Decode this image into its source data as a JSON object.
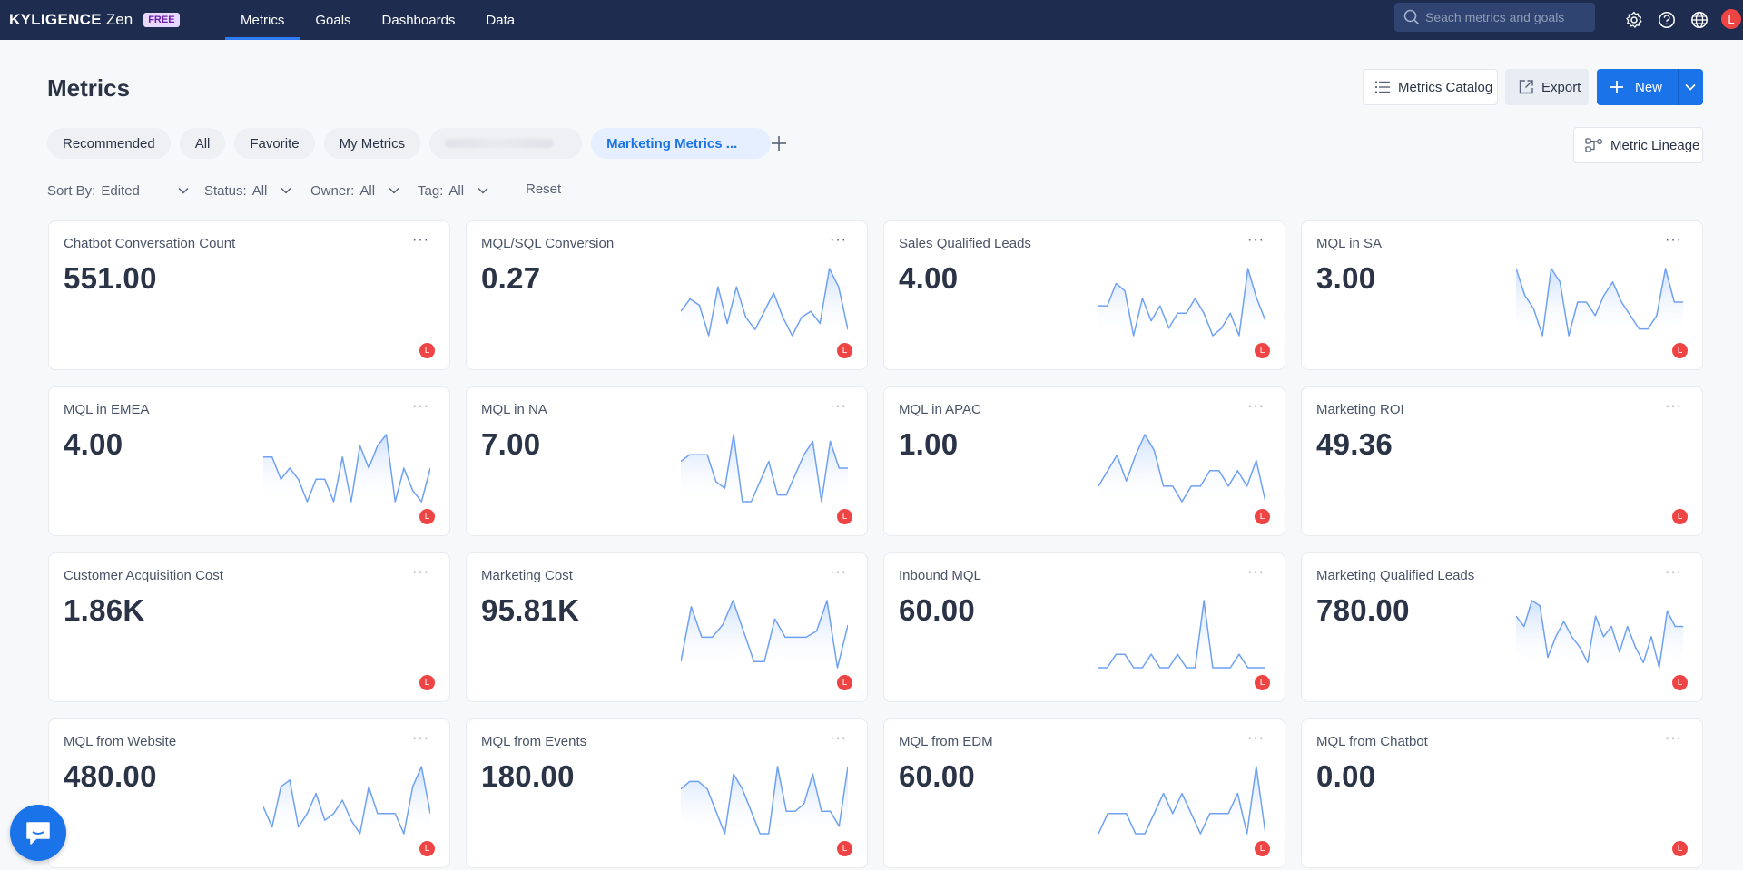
{
  "brand": {
    "name": "KYLIGENCE",
    "product": "Zen",
    "badge": "FREE"
  },
  "nav": [
    {
      "label": "Metrics",
      "active": true
    },
    {
      "label": "Goals",
      "active": false
    },
    {
      "label": "Dashboards",
      "active": false
    },
    {
      "label": "Data",
      "active": false
    }
  ],
  "search": {
    "placeholder": "Seach metrics and goals",
    "value": ""
  },
  "top_icons": [
    "settings-icon",
    "help-icon",
    "globe-icon"
  ],
  "user": {
    "initial": "L"
  },
  "page": {
    "title": "Metrics"
  },
  "actions": {
    "catalog": "Metrics Catalog",
    "export": "Export",
    "new": "New",
    "lineage": "Metric Lineage"
  },
  "tabs": [
    {
      "label": "Recommended"
    },
    {
      "label": "All"
    },
    {
      "label": "Favorite"
    },
    {
      "label": "My Metrics"
    },
    {
      "label": ""
    },
    {
      "label": "Marketing Metrics ...",
      "active": true
    }
  ],
  "filters": {
    "sort": {
      "key": "Sort By:",
      "value": "Edited"
    },
    "status": {
      "key": "Status:",
      "value": "All"
    },
    "owner": {
      "key": "Owner:",
      "value": "All"
    },
    "tag": {
      "key": "Tag:",
      "value": "All"
    },
    "reset": "Reset"
  },
  "accent": "#1a73e8",
  "cards": [
    {
      "title": "Chatbot Conversation Count",
      "value": "551.00",
      "owner": "L",
      "trend": []
    },
    {
      "title": "MQL/SQL Conversion",
      "value": "0.27",
      "owner": "L",
      "trend": [
        5,
        7,
        6,
        1,
        9,
        3,
        9,
        4,
        2,
        5,
        8,
        4,
        1,
        4,
        5,
        3,
        12,
        9,
        2
      ]
    },
    {
      "title": "Sales Qualified Leads",
      "value": "4.00",
      "owner": "L",
      "trend": [
        5,
        5,
        8,
        7,
        1,
        6,
        3,
        5,
        2,
        4,
        4,
        6,
        4,
        1,
        2,
        4,
        1,
        10,
        6,
        3
      ]
    },
    {
      "title": "MQL in SA",
      "value": "3.00",
      "owner": "L",
      "trend": [
        10,
        6,
        4,
        0,
        10,
        8,
        0,
        5,
        5,
        3,
        6,
        8,
        5,
        3,
        1,
        1,
        3,
        10,
        5,
        5
      ]
    },
    {
      "title": "MQL in EMEA",
      "value": "4.00",
      "owner": "L",
      "trend": [
        8,
        8,
        4,
        6,
        4,
        0,
        4,
        4,
        0,
        8,
        0,
        10,
        6,
        10,
        12,
        0,
        6,
        2,
        0,
        6
      ]
    },
    {
      "title": "MQL in NA",
      "value": "7.00",
      "owner": "L",
      "trend": [
        6,
        7,
        7,
        7,
        3,
        2,
        10,
        0,
        0,
        3,
        6,
        1,
        1,
        4,
        7,
        9,
        0,
        9,
        5,
        5
      ]
    },
    {
      "title": "MQL in APAC",
      "value": "1.00",
      "owner": "L",
      "trend": [
        3,
        6,
        9,
        4,
        9,
        13,
        10,
        3,
        3,
        0,
        3,
        3,
        6,
        6,
        3,
        6,
        3,
        8,
        0
      ]
    },
    {
      "title": "Marketing ROI",
      "value": "49.36",
      "owner": "L",
      "trend": []
    },
    {
      "title": "Customer Acquisition Cost",
      "value": "1.86K",
      "owner": "L",
      "trend": []
    },
    {
      "title": "Marketing Cost",
      "value": "95.81K",
      "owner": "L",
      "trend": [
        1,
        10,
        5,
        5,
        7,
        11,
        6,
        1,
        1,
        8,
        5,
        5,
        5,
        6,
        11,
        0,
        7
      ]
    },
    {
      "title": "Inbound MQL",
      "value": "60.00",
      "owner": "L",
      "trend": [
        0,
        0,
        1,
        1,
        0,
        0,
        1,
        0,
        0,
        1,
        0,
        0,
        5,
        0,
        0,
        0,
        1,
        0,
        0,
        0
      ]
    },
    {
      "title": "Marketing Qualified Leads",
      "value": "780.00",
      "owner": "L",
      "trend": [
        10,
        8,
        13,
        12,
        2,
        6,
        9,
        6,
        4,
        1,
        10,
        6,
        8,
        3,
        8,
        4,
        1,
        6,
        0,
        11,
        8,
        8
      ]
    },
    {
      "title": "MQL from Website",
      "value": "480.00",
      "owner": "L",
      "trend": [
        5,
        2,
        8,
        9,
        2,
        4,
        7,
        3,
        4,
        6,
        3,
        1,
        8,
        4,
        4,
        4,
        1,
        8,
        11,
        4
      ]
    },
    {
      "title": "MQL from Events",
      "value": "180.00",
      "owner": "L",
      "trend": [
        6,
        7,
        7,
        6,
        3,
        0,
        8,
        6,
        3,
        0,
        0,
        9,
        3,
        3,
        4,
        8,
        3,
        3,
        1,
        9
      ]
    },
    {
      "title": "MQL from EDM",
      "value": "60.00",
      "owner": "L",
      "trend": [
        0,
        3,
        3,
        3,
        0,
        0,
        3,
        6,
        3,
        6,
        3,
        0,
        3,
        3,
        3,
        6,
        0,
        10,
        0
      ]
    },
    {
      "title": "MQL from Chatbot",
      "value": "0.00",
      "owner": "L",
      "trend": []
    }
  ]
}
